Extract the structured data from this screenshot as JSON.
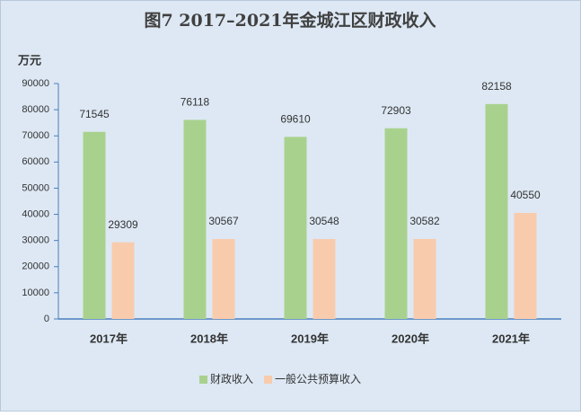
{
  "chart_data": {
    "type": "bar",
    "title": "图7  2017–2021年金城江区财政收入",
    "y_label": "万元",
    "categories": [
      "2017年",
      "2018年",
      "2019年",
      "2020年",
      "2021年"
    ],
    "series": [
      {
        "name": "财政收入",
        "color": "#a9d18e",
        "values": [
          71545,
          76118,
          69610,
          72903,
          82158
        ]
      },
      {
        "name": "一般公共预算收入",
        "color": "#f8cbad",
        "values": [
          29309,
          30567,
          30548,
          30582,
          40550
        ]
      }
    ],
    "ylim": [
      0,
      90000
    ],
    "yticks": [
      0,
      10000,
      20000,
      30000,
      40000,
      50000,
      60000,
      70000,
      80000,
      90000
    ],
    "grid": false,
    "legend": "bottom"
  }
}
